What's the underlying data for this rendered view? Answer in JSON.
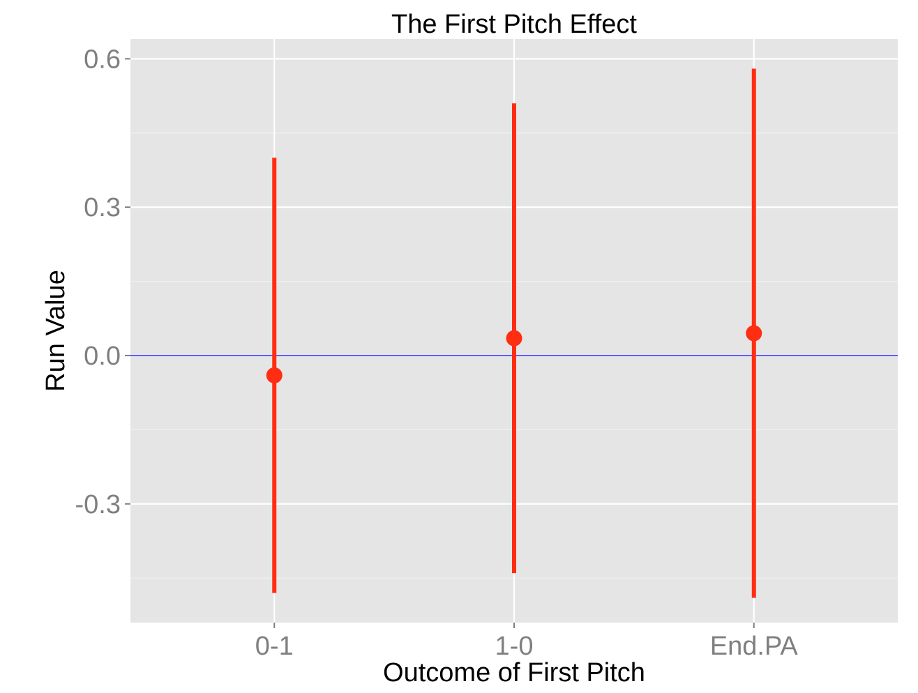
{
  "chart_data": {
    "type": "pointrange",
    "title": "The First Pitch Effect",
    "xlabel": "Outcome of First Pitch",
    "ylabel": "Run Value",
    "categories": [
      "0-1",
      "1-0",
      "End.PA"
    ],
    "series": [
      {
        "points": [
          {
            "category": "0-1",
            "y": -0.04,
            "ymin": -0.48,
            "ymax": 0.4
          },
          {
            "category": "1-0",
            "y": 0.035,
            "ymin": -0.44,
            "ymax": 0.51
          },
          {
            "category": "End.PA",
            "y": 0.045,
            "ymin": -0.49,
            "ymax": 0.58
          }
        ]
      }
    ],
    "ylim": [
      -0.54,
      0.64
    ],
    "yticks": [
      -0.3,
      0.0,
      0.3,
      0.6
    ],
    "ytick_labels": [
      "-0.3",
      "0.0",
      "0.3",
      "0.6"
    ],
    "reference_line": {
      "y": 0.0
    },
    "grid": true,
    "legend": "none",
    "colors": {
      "panel_background": "#e5e5e5",
      "grid_major": "#ffffff",
      "grid_minor": "#f0f0f0",
      "point": "#ff2d12",
      "reference_line": "#3a3aff",
      "tick_label": "#7f7f7f"
    }
  }
}
